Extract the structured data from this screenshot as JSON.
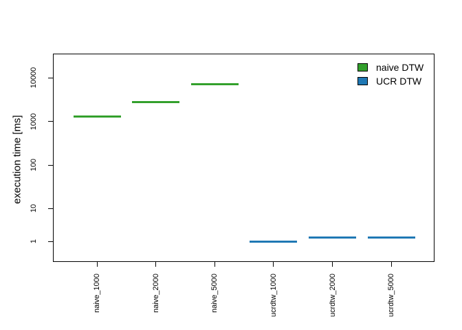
{
  "chart_data": {
    "type": "boxplot",
    "note": "degenerate boxplots rendered as horizontal median lines on a log y-axis",
    "title": "",
    "ylabel": "execution time [ms]",
    "yscale": "log",
    "ytick_labels": [
      "1",
      "10",
      "100",
      "1000",
      "10000"
    ],
    "ytick_values": [
      1,
      10,
      100,
      1000,
      10000
    ],
    "categories": [
      "naive_1000",
      "naive_2000",
      "naive_5000",
      "ucrdtw_1000",
      "ucrdtw_2000",
      "ucrdtw_5000"
    ],
    "series": [
      {
        "name": "naive DTW",
        "color": "#33a02c",
        "categories": [
          "naive_1000",
          "naive_2000",
          "naive_5000"
        ],
        "values_ms": [
          1300,
          2800,
          7000
        ]
      },
      {
        "name": "UCR DTW",
        "color": "#1f78b4",
        "categories": [
          "ucrdtw_1000",
          "ucrdtw_2000",
          "ucrdtw_5000"
        ],
        "values_ms": [
          1.0,
          1.3,
          1.3
        ]
      }
    ],
    "legend": {
      "position": "topright",
      "entries": [
        {
          "label": "naive DTW",
          "swatch_color": "#33a02c"
        },
        {
          "label": "UCR DTW",
          "swatch_color": "#1f78b4"
        }
      ]
    }
  }
}
